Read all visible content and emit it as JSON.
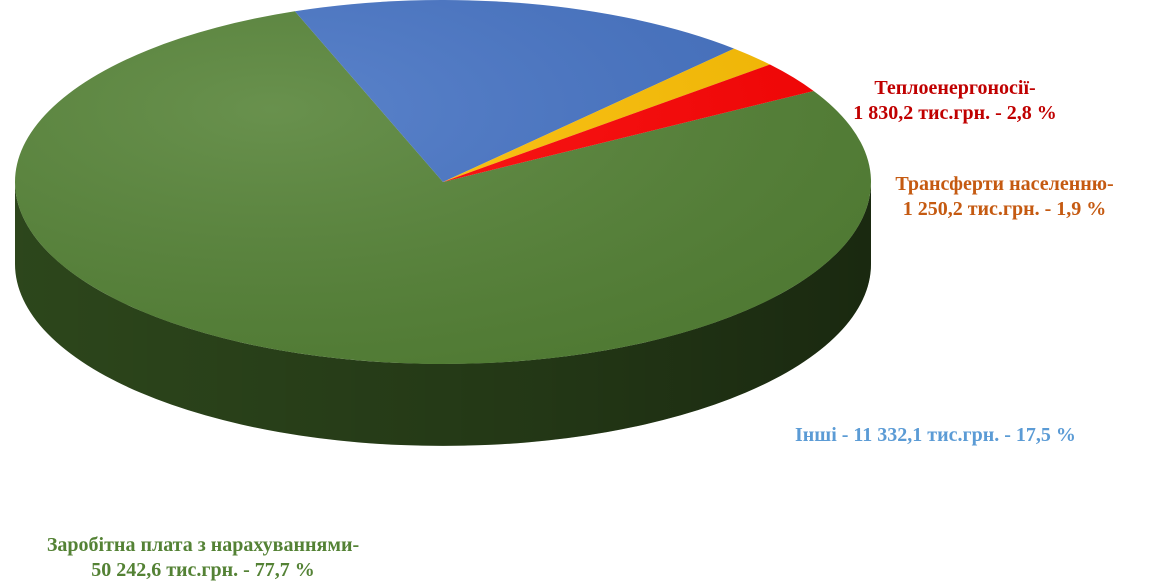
{
  "chart_data": {
    "type": "pie",
    "style": "3d",
    "slices": [
      {
        "name": "Заробітна плата з нарахуваннями",
        "value": 50242.6,
        "percent": 77.7,
        "label_line1": "Заробітна плата з нарахуваннями-",
        "label_line2": "50 242,6 тис.грн.  - 77,7 %",
        "color": "#548235",
        "side_color": "#2f4a1d",
        "label_color": "#548235"
      },
      {
        "name": "Інші",
        "value": 11332.1,
        "percent": 17.5,
        "label_line1": "Інші - 11 332,1 тис.грн. - 17,5 %",
        "label_line2": "",
        "color": "#4472c4",
        "side_color": "#1f3864",
        "label_color": "#5b9bd5"
      },
      {
        "name": "Трансферти населенню",
        "value": 1250.2,
        "percent": 1.9,
        "label_line1": "Трансферти населенню-",
        "label_line2": "1 250,2 тис.грн. - 1,9 %",
        "color": "#ffc000",
        "side_color": "#b38600",
        "label_color": "#c55a11"
      },
      {
        "name": "Теплоенергоносії",
        "value": 1830.2,
        "percent": 2.8,
        "label_line1": "Теплоенергоносії-",
        "label_line2": "1 830,2 тис.грн. - 2,8 %",
        "color": "#ff0000",
        "side_color": "#a00000",
        "label_color": "#c00000"
      }
    ]
  }
}
